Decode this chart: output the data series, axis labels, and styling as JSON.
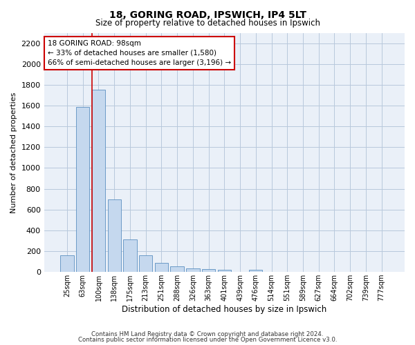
{
  "title1": "18, GORING ROAD, IPSWICH, IP4 5LT",
  "title2": "Size of property relative to detached houses in Ipswich",
  "xlabel": "Distribution of detached houses by size in Ipswich",
  "ylabel": "Number of detached properties",
  "categories": [
    "25sqm",
    "63sqm",
    "100sqm",
    "138sqm",
    "175sqm",
    "213sqm",
    "251sqm",
    "288sqm",
    "326sqm",
    "363sqm",
    "401sqm",
    "439sqm",
    "476sqm",
    "514sqm",
    "551sqm",
    "589sqm",
    "627sqm",
    "664sqm",
    "702sqm",
    "739sqm",
    "777sqm"
  ],
  "values": [
    160,
    1590,
    1750,
    700,
    315,
    160,
    90,
    55,
    33,
    25,
    20,
    0,
    20,
    0,
    0,
    0,
    0,
    0,
    0,
    0,
    0
  ],
  "bar_color": "#c5d8ee",
  "bar_edgecolor": "#5a8fc0",
  "grid_color": "#b8c8dc",
  "bg_color": "#eaf0f8",
  "vline_color": "#cc0000",
  "vline_x_index": 2,
  "annotation_line1": "18 GORING ROAD: 98sqm",
  "annotation_line2": "← 33% of detached houses are smaller (1,580)",
  "annotation_line3": "66% of semi-detached houses are larger (3,196) →",
  "annotation_box_color": "#cc0000",
  "footer1": "Contains HM Land Registry data © Crown copyright and database right 2024.",
  "footer2": "Contains public sector information licensed under the Open Government Licence v3.0.",
  "ylim": [
    0,
    2300
  ],
  "yticks": [
    0,
    200,
    400,
    600,
    800,
    1000,
    1200,
    1400,
    1600,
    1800,
    2000,
    2200
  ],
  "title1_fontsize": 10,
  "title2_fontsize": 8.5,
  "ylabel_fontsize": 8,
  "xlabel_fontsize": 8.5,
  "ytick_fontsize": 8,
  "xtick_fontsize": 7
}
